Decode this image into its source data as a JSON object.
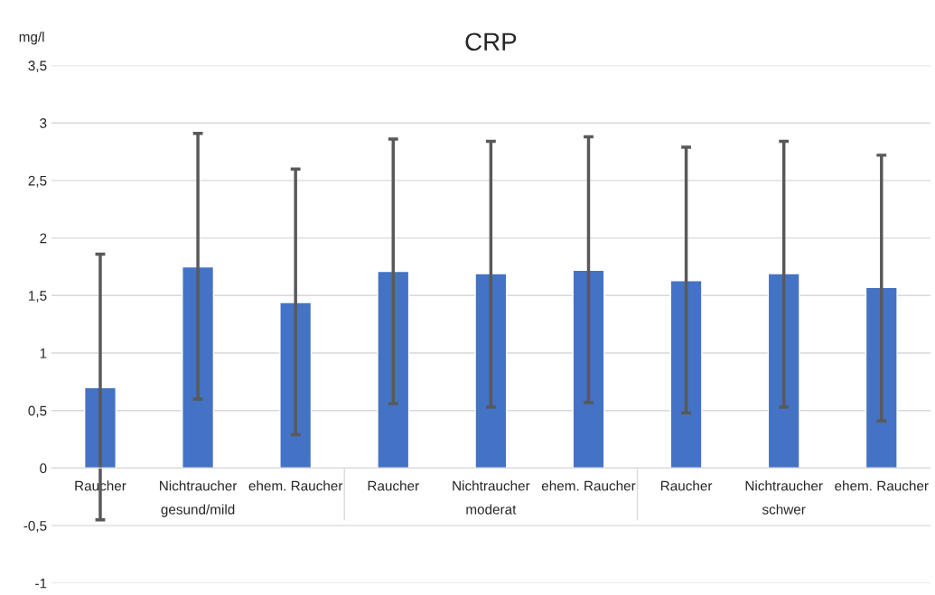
{
  "chart_data": {
    "type": "bar",
    "title": "CRP",
    "ylabel": "mg/l",
    "categories": [
      "Raucher",
      "Nichtraucher",
      "ehem. Raucher",
      "Raucher",
      "Nichtraucher",
      "ehem. Raucher",
      "Raucher",
      "Nichtraucher",
      "ehem. Raucher"
    ],
    "values": [
      0.7,
      1.75,
      1.44,
      1.71,
      1.69,
      1.72,
      1.63,
      1.69,
      1.57
    ],
    "errors": [
      [
        -0.45,
        1.86
      ],
      [
        0.6,
        2.91
      ],
      [
        0.29,
        2.6
      ],
      [
        0.56,
        2.86
      ],
      [
        0.53,
        2.84
      ],
      [
        0.57,
        2.88
      ],
      [
        0.48,
        2.79
      ],
      [
        0.53,
        2.84
      ],
      [
        0.41,
        2.72
      ]
    ],
    "color": "#4472c4",
    "annotations": [
      "gesund/mild",
      "moderat",
      "schwer"
    ],
    "ylim": [
      -1,
      3.5
    ],
    "yticks": [
      {
        "value": -1,
        "label": "-1"
      },
      {
        "value": -0.5,
        "label": "-0,5"
      },
      0,
      {
        "value": 0.5,
        "label": "0,5"
      },
      1,
      {
        "value": 1.5,
        "label": "1,5"
      },
      2,
      {
        "value": 2.5,
        "label": "2,5"
      },
      3,
      {
        "value": 3.5,
        "label": "3,5"
      }
    ],
    "grid": "y",
    "legend": false
  }
}
